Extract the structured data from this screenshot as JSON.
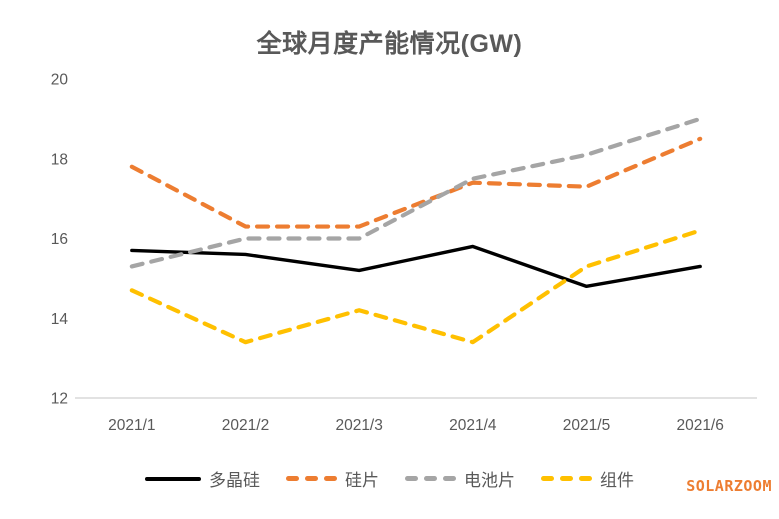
{
  "watermark": {
    "text": "SOLARZOOM",
    "color": "#ED7D31"
  },
  "chart_data": {
    "type": "line",
    "title": "全球月度产能情况(GW)",
    "categories": [
      "2021/1",
      "2021/2",
      "2021/3",
      "2021/4",
      "2021/5",
      "2021/6"
    ],
    "series": [
      {
        "name": "多晶硅",
        "color": "#000000",
        "style": "solid",
        "values": [
          15.7,
          15.6,
          15.2,
          15.8,
          14.8,
          15.3
        ]
      },
      {
        "name": "硅片",
        "color": "#ED7D31",
        "style": "dashed",
        "values": [
          17.8,
          16.3,
          16.3,
          17.4,
          17.3,
          18.5
        ]
      },
      {
        "name": "电池片",
        "color": "#A5A5A5",
        "style": "dashed",
        "values": [
          15.3,
          16.0,
          16.0,
          17.5,
          18.1,
          19.0
        ]
      },
      {
        "name": "组件",
        "color": "#FFC000",
        "style": "dashed",
        "values": [
          14.7,
          13.4,
          14.2,
          13.4,
          15.3,
          16.2
        ]
      }
    ],
    "xlabel": "",
    "ylabel": "",
    "ylim": [
      12,
      20
    ],
    "yticks": [
      12,
      14,
      16,
      18,
      20
    ],
    "grid": false,
    "legend_position": "bottom",
    "axis_color": "#D9D9D9",
    "tick_label_color": "#595959"
  }
}
